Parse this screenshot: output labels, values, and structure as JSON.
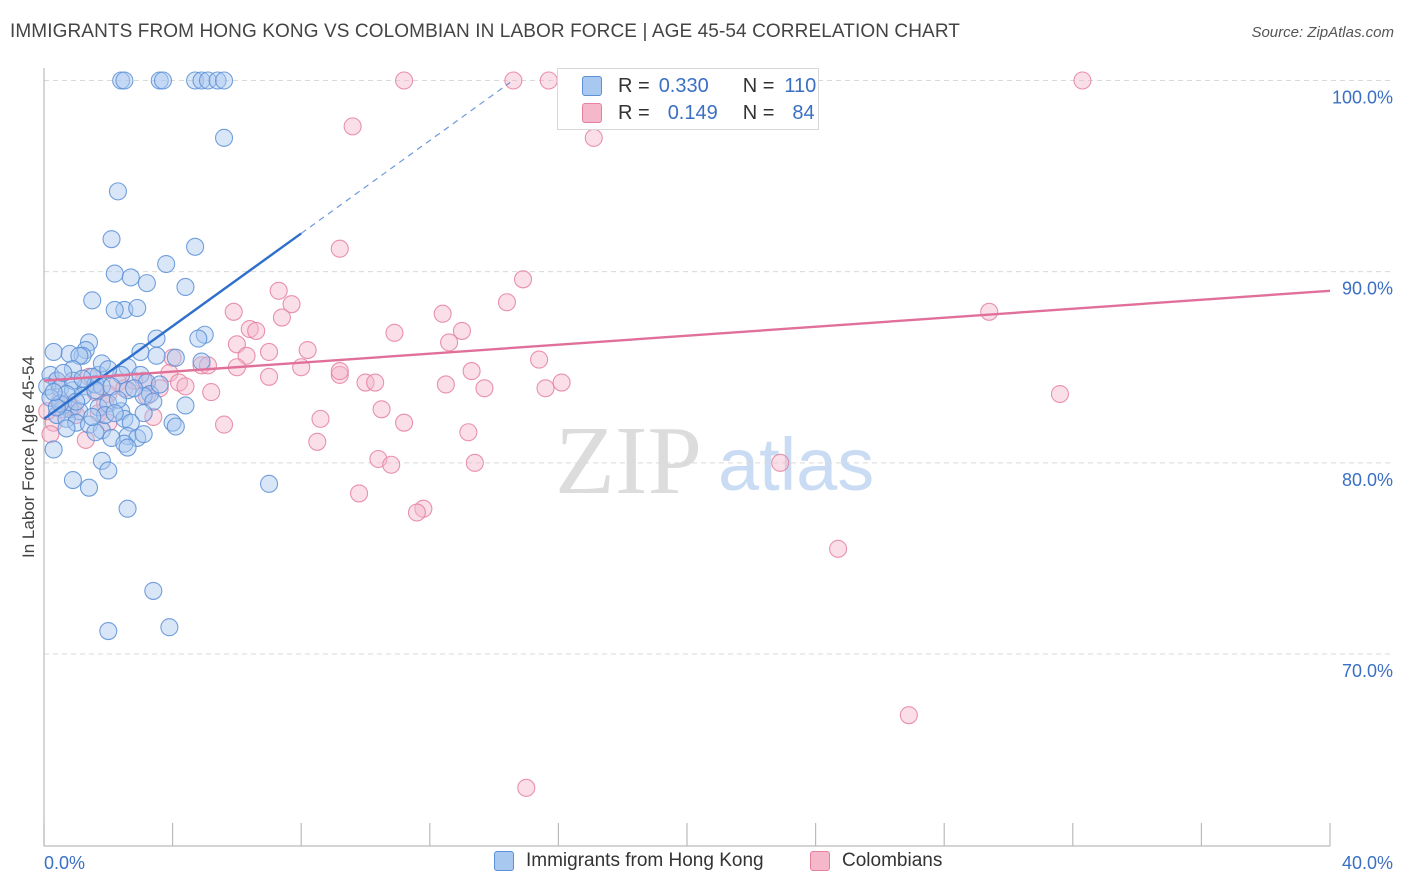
{
  "title": "IMMIGRANTS FROM HONG KONG VS COLOMBIAN IN LABOR FORCE | AGE 45-54 CORRELATION CHART",
  "source": "Source: ZipAtlas.com",
  "watermark": {
    "zip": "ZIP",
    "atlas": "atlas"
  },
  "colors": {
    "blue_fill": "#a9c8f0",
    "blue_stroke": "#5b8fd6",
    "blue_line": "#2f6fcc",
    "pink_fill": "#f5b8cb",
    "pink_stroke": "#e5809f",
    "pink_line": "#e0709a",
    "axis_label": "#3b6fc4"
  },
  "stats": {
    "blue": {
      "r_label": "R =",
      "r_value": "0.330",
      "n_label": "N =",
      "n_value": "110"
    },
    "pink": {
      "r_label": "R =",
      "r_value": "0.149",
      "n_label": "N =",
      "n_value": "84"
    }
  },
  "chart_data": {
    "type": "scatter",
    "title": "IMMIGRANTS FROM HONG KONG VS COLOMBIAN IN LABOR FORCE | AGE 45-54 CORRELATION CHART",
    "xlabel": "",
    "ylabel": "In Labor Force | Age 45-54",
    "xlim": [
      0,
      40
    ],
    "ylim": [
      60,
      102
    ],
    "x_tick_labels": [
      "0.0%",
      "40.0%"
    ],
    "y_ticks": [
      70,
      80,
      90,
      100
    ],
    "y_tick_labels": [
      "70.0%",
      "80.0%",
      "90.0%",
      "100.0%"
    ],
    "legend": [
      "Immigrants from Hong Kong",
      "Colombians"
    ],
    "series": [
      {
        "name": "Immigrants from Hong Kong",
        "color": "blue",
        "trend": {
          "x": [
            0.0,
            8.0
          ],
          "y": [
            82.3,
            92.0
          ],
          "dashed_to": [
            14.5,
            99.9
          ]
        },
        "points": [
          [
            2.4,
            100
          ],
          [
            2.5,
            100
          ],
          [
            3.6,
            100
          ],
          [
            3.7,
            100
          ],
          [
            4.7,
            100
          ],
          [
            4.9,
            100
          ],
          [
            5.1,
            100
          ],
          [
            5.4,
            100
          ],
          [
            5.6,
            100
          ],
          [
            5.6,
            97.0
          ],
          [
            2.3,
            94.2
          ],
          [
            2.1,
            91.7
          ],
          [
            4.7,
            91.3
          ],
          [
            3.8,
            90.4
          ],
          [
            2.2,
            89.9
          ],
          [
            2.7,
            89.7
          ],
          [
            4.4,
            89.2
          ],
          [
            3.2,
            89.4
          ],
          [
            1.5,
            88.5
          ],
          [
            2.5,
            88.0
          ],
          [
            2.9,
            88.1
          ],
          [
            2.2,
            88.0
          ],
          [
            5.0,
            86.7
          ],
          [
            4.8,
            86.5
          ],
          [
            3.5,
            86.5
          ],
          [
            1.4,
            86.3
          ],
          [
            1.3,
            85.9
          ],
          [
            1.2,
            85.6
          ],
          [
            0.3,
            85.8
          ],
          [
            0.8,
            85.7
          ],
          [
            1.1,
            85.6
          ],
          [
            3.0,
            85.8
          ],
          [
            3.5,
            85.6
          ],
          [
            4.1,
            85.5
          ],
          [
            4.9,
            85.3
          ],
          [
            2.6,
            85.0
          ],
          [
            0.2,
            84.6
          ],
          [
            0.4,
            84.3
          ],
          [
            0.9,
            84.9
          ],
          [
            1.7,
            84.6
          ],
          [
            1.5,
            84.5
          ],
          [
            2.4,
            84.6
          ],
          [
            3.0,
            84.6
          ],
          [
            3.2,
            84.2
          ],
          [
            3.3,
            83.6
          ],
          [
            0.1,
            84.0
          ],
          [
            0.5,
            83.9
          ],
          [
            0.9,
            83.8
          ],
          [
            1.3,
            84.0
          ],
          [
            1.6,
            84.1
          ],
          [
            1.8,
            84.0
          ],
          [
            2.6,
            83.8
          ],
          [
            3.1,
            83.5
          ],
          [
            3.4,
            83.2
          ],
          [
            0.6,
            83.0
          ],
          [
            0.8,
            82.8
          ],
          [
            1.1,
            82.7
          ],
          [
            1.7,
            82.9
          ],
          [
            2.0,
            83.1
          ],
          [
            2.4,
            82.7
          ],
          [
            2.5,
            82.3
          ],
          [
            3.1,
            82.6
          ],
          [
            4.4,
            83.0
          ],
          [
            0.4,
            82.5
          ],
          [
            0.7,
            82.3
          ],
          [
            1.0,
            82.1
          ],
          [
            1.4,
            82.0
          ],
          [
            1.8,
            81.7
          ],
          [
            2.7,
            82.1
          ],
          [
            4.0,
            82.1
          ],
          [
            4.1,
            81.9
          ],
          [
            0.7,
            81.8
          ],
          [
            1.6,
            81.6
          ],
          [
            2.6,
            81.4
          ],
          [
            2.9,
            81.3
          ],
          [
            3.1,
            81.5
          ],
          [
            2.1,
            81.3
          ],
          [
            2.5,
            81.0
          ],
          [
            2.6,
            80.8
          ],
          [
            0.3,
            80.7
          ],
          [
            1.8,
            80.1
          ],
          [
            2.0,
            79.6
          ],
          [
            0.9,
            79.1
          ],
          [
            1.4,
            78.7
          ],
          [
            7.0,
            78.9
          ],
          [
            2.6,
            77.6
          ],
          [
            3.4,
            73.3
          ],
          [
            2.0,
            71.2
          ],
          [
            3.9,
            71.4
          ],
          [
            0.2,
            83.4
          ],
          [
            0.5,
            83.1
          ],
          [
            1.2,
            83.5
          ],
          [
            0.9,
            84.3
          ],
          [
            2.1,
            84.0
          ],
          [
            1.9,
            82.5
          ],
          [
            0.6,
            84.7
          ],
          [
            1.5,
            82.4
          ],
          [
            2.3,
            83.3
          ],
          [
            2.8,
            83.9
          ],
          [
            0.4,
            82.9
          ],
          [
            1.2,
            84.4
          ],
          [
            1.8,
            85.2
          ],
          [
            0.7,
            83.6
          ],
          [
            2.0,
            84.9
          ],
          [
            3.6,
            84.1
          ],
          [
            0.3,
            83.7
          ],
          [
            1.0,
            83.2
          ],
          [
            1.6,
            83.8
          ],
          [
            2.2,
            82.6
          ]
        ]
      },
      {
        "name": "Colombians",
        "color": "pink",
        "trend": {
          "x": [
            0.0,
            40.0
          ],
          "y": [
            84.3,
            89.0
          ]
        },
        "points": [
          [
            11.2,
            100
          ],
          [
            14.6,
            100
          ],
          [
            15.7,
            100
          ],
          [
            22.9,
            100
          ],
          [
            32.3,
            100
          ],
          [
            9.6,
            97.6
          ],
          [
            17.1,
            97.0
          ],
          [
            9.2,
            91.2
          ],
          [
            14.9,
            89.6
          ],
          [
            14.4,
            88.4
          ],
          [
            7.3,
            89.0
          ],
          [
            7.7,
            88.3
          ],
          [
            7.4,
            87.6
          ],
          [
            29.4,
            87.9
          ],
          [
            5.9,
            87.9
          ],
          [
            6.4,
            87.0
          ],
          [
            6.6,
            86.9
          ],
          [
            12.4,
            87.8
          ],
          [
            13.0,
            86.9
          ],
          [
            10.9,
            86.8
          ],
          [
            12.6,
            86.3
          ],
          [
            6.0,
            86.2
          ],
          [
            4.9,
            85.1
          ],
          [
            6.3,
            85.6
          ],
          [
            7.0,
            85.8
          ],
          [
            8.2,
            85.9
          ],
          [
            15.4,
            85.4
          ],
          [
            8.0,
            85.0
          ],
          [
            6.0,
            85.0
          ],
          [
            4.0,
            85.5
          ],
          [
            3.1,
            84.3
          ],
          [
            3.9,
            84.7
          ],
          [
            4.2,
            84.2
          ],
          [
            5.1,
            85.1
          ],
          [
            9.2,
            84.6
          ],
          [
            10.0,
            84.2
          ],
          [
            10.3,
            84.2
          ],
          [
            12.5,
            84.1
          ],
          [
            13.3,
            84.8
          ],
          [
            13.7,
            83.9
          ],
          [
            15.6,
            83.9
          ],
          [
            16.1,
            84.2
          ],
          [
            9.2,
            84.8
          ],
          [
            7.0,
            84.5
          ],
          [
            2.3,
            84.2
          ],
          [
            2.5,
            83.9
          ],
          [
            3.6,
            83.9
          ],
          [
            4.4,
            84.0
          ],
          [
            5.2,
            83.7
          ],
          [
            2.0,
            83.6
          ],
          [
            1.6,
            83.7
          ],
          [
            3.2,
            83.5
          ],
          [
            31.6,
            83.6
          ],
          [
            10.5,
            82.8
          ],
          [
            11.2,
            82.1
          ],
          [
            8.6,
            82.3
          ],
          [
            5.6,
            82.0
          ],
          [
            1.7,
            82.6
          ],
          [
            2.0,
            82.1
          ],
          [
            3.4,
            82.4
          ],
          [
            0.3,
            82.1
          ],
          [
            0.6,
            82.8
          ],
          [
            1.3,
            81.2
          ],
          [
            13.2,
            81.6
          ],
          [
            8.5,
            81.1
          ],
          [
            10.4,
            80.2
          ],
          [
            10.8,
            79.9
          ],
          [
            13.4,
            80.0
          ],
          [
            22.9,
            80.0
          ],
          [
            9.8,
            78.4
          ],
          [
            11.8,
            77.6
          ],
          [
            11.6,
            77.4
          ],
          [
            24.7,
            75.5
          ],
          [
            26.9,
            66.8
          ],
          [
            15.0,
            63.0
          ],
          [
            0.2,
            81.5
          ],
          [
            0.5,
            83.3
          ],
          [
            0.8,
            83.0
          ],
          [
            1.0,
            82.5
          ],
          [
            1.4,
            84.5
          ],
          [
            0.4,
            84.3
          ],
          [
            0.9,
            82.9
          ],
          [
            2.8,
            84.3
          ],
          [
            0.1,
            82.7
          ],
          [
            1.9,
            83.1
          ]
        ]
      }
    ]
  },
  "legend_bottom": {
    "blue_label": "Immigrants from Hong Kong",
    "pink_label": "Colombians"
  }
}
